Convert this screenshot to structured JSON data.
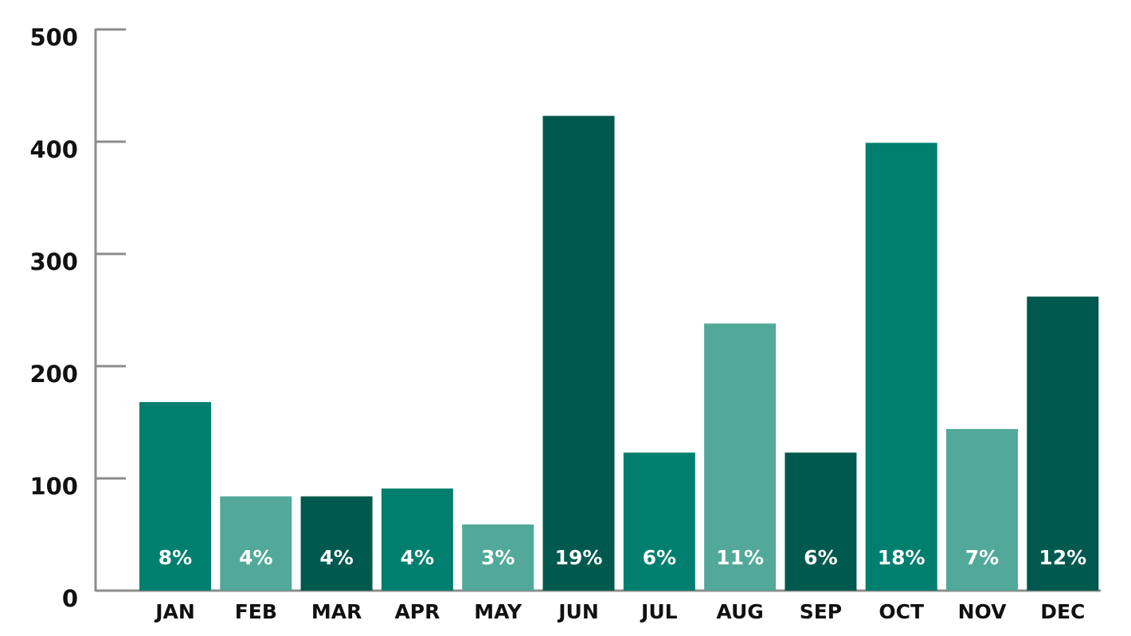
{
  "chart_data": {
    "type": "bar",
    "categories": [
      "JAN",
      "FEB",
      "MAR",
      "APR",
      "MAY",
      "JUN",
      "JUL",
      "AUG",
      "SEP",
      "OCT",
      "NOV",
      "DEC"
    ],
    "values": [
      168,
      84,
      84,
      91,
      59,
      423,
      123,
      238,
      123,
      399,
      144,
      262
    ],
    "bar_labels": [
      "8%",
      "4%",
      "4%",
      "4%",
      "3%",
      "19%",
      "6%",
      "11%",
      "6%",
      "18%",
      "7%",
      "12%"
    ],
    "colors": [
      "#007f6e",
      "#52a999",
      "#00594e",
      "#007f6e",
      "#52a999",
      "#00594e",
      "#007f6e",
      "#52a999",
      "#00594e",
      "#007f6e",
      "#52a999",
      "#00594e"
    ],
    "ylim": [
      0,
      500
    ],
    "yticks": [
      0,
      100,
      200,
      300,
      400,
      500
    ]
  }
}
